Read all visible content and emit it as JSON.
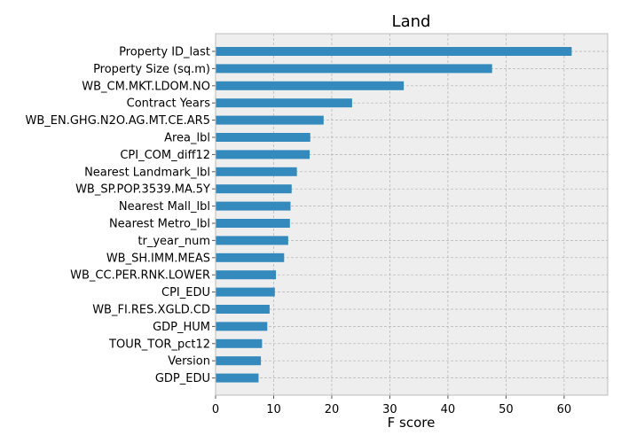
{
  "chart_data": {
    "type": "bar",
    "orientation": "horizontal",
    "title": "Land",
    "xlabel": "F score",
    "ylabel": "",
    "xlim": [
      0,
      67.5
    ],
    "xticks": [
      0,
      10,
      20,
      30,
      40,
      50,
      60
    ],
    "grid": true,
    "categories": [
      "Property ID_last",
      "Property Size (sq.m)",
      "WB_CM.MKT.LDOM.NO",
      "Contract Years",
      "WB_EN.GHG.N2O.AG.MT.CE.AR5",
      "Area_lbl",
      "CPI_COM_diff12",
      "Nearest Landmark_lbl",
      "WB_SP.POP.3539.MA.5Y",
      "Nearest Mall_lbl",
      "Nearest Metro_lbl",
      "tr_year_num",
      "WB_SH.IMM.MEAS",
      "WB_CC.PER.RNK.LOWER",
      "CPI_EDU",
      "WB_FI.RES.XGLD.CD",
      "GDP_HUM",
      "TOUR_TOR_pct12",
      "Version",
      "GDP_EDU"
    ],
    "values": [
      61.3,
      47.6,
      32.4,
      23.5,
      18.6,
      16.3,
      16.2,
      14.0,
      13.1,
      12.9,
      12.8,
      12.5,
      11.8,
      10.4,
      10.2,
      9.3,
      8.9,
      8.0,
      7.8,
      7.4
    ],
    "colors": {
      "bar": "#348ABD",
      "axes_bg": "#EEEEEE",
      "grid": "#B2B2B2",
      "spine": "#BCBCBC"
    }
  }
}
